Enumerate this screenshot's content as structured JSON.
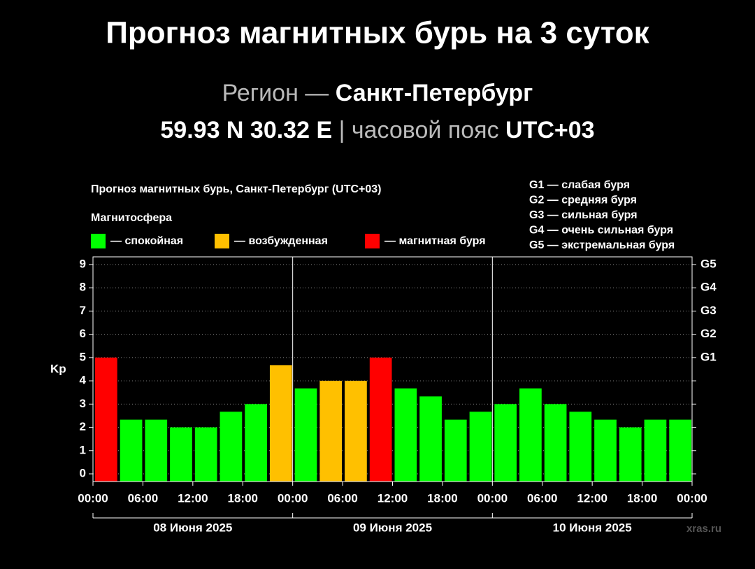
{
  "header": {
    "title": "Прогноз магнитных бурь на 3 суток",
    "region_label": "Регион —",
    "region": "Санкт-Петербург",
    "coords": "59.93 N 30.32 E",
    "separator": "|",
    "tz_label": "часовой пояс",
    "tz": "UTC+03"
  },
  "chart_data": {
    "type": "bar",
    "title": "Прогноз магнитных бурь, Санкт-Петербург (UTC+03)",
    "legend_title": "Магнитосфера",
    "legend": [
      {
        "label": "— спокойная",
        "color": "#00ff00"
      },
      {
        "label": "— возбужденная",
        "color": "#ffc000"
      },
      {
        "label": "— магнитная буря",
        "color": "#ff0000"
      }
    ],
    "g_legend": [
      "G1 — слабая буря",
      "G2 — средняя буря",
      "G3 — сильная буря",
      "G4 — очень сильная буря",
      "G5 — экстремальная буря"
    ],
    "ylabel": "Kp",
    "categories": [
      null,
      null,
      null,
      null,
      null,
      null,
      null,
      null,
      null,
      null,
      null,
      null,
      null,
      null,
      null,
      null,
      null,
      null,
      null,
      null,
      null,
      null,
      null,
      null
    ],
    "values": [
      5,
      2.33,
      2.33,
      2,
      2,
      2.67,
      3,
      4.67,
      3.67,
      4,
      4,
      5,
      3.67,
      3.33,
      2.33,
      2.67,
      3,
      3.67,
      3,
      2.67,
      2.33,
      2,
      2.33,
      2.33
    ],
    "colors": [
      "#ff0000",
      "#00ff00",
      "#00ff00",
      "#00ff00",
      "#00ff00",
      "#00ff00",
      "#00ff00",
      "#ffc000",
      "#00ff00",
      "#ffc000",
      "#ffc000",
      "#ff0000",
      "#00ff00",
      "#00ff00",
      "#00ff00",
      "#00ff00",
      "#00ff00",
      "#00ff00",
      "#00ff00",
      "#00ff00",
      "#00ff00",
      "#00ff00",
      "#00ff00",
      "#00ff00"
    ],
    "ylim": [
      -0.33,
      9.33
    ],
    "yticks": [
      0,
      1,
      2,
      3,
      4,
      5,
      6,
      7,
      8,
      9
    ],
    "y2lim": [
      -0.33,
      9.33
    ],
    "y2ticks": [
      {
        "value": 5,
        "label": "G1"
      },
      {
        "value": 6,
        "label": "G2"
      },
      {
        "value": 7,
        "label": "G3"
      },
      {
        "value": 8,
        "label": "G4"
      },
      {
        "value": 9,
        "label": "G5"
      }
    ],
    "xlim": [
      0,
      72
    ],
    "xticks": [
      {
        "value": 0,
        "label": "00:00"
      },
      {
        "value": 6,
        "label": "06:00"
      },
      {
        "value": 12,
        "label": "12:00"
      },
      {
        "value": 18,
        "label": "18:00"
      },
      {
        "value": 24,
        "label": "00:00"
      },
      {
        "value": 30,
        "label": "06:00"
      },
      {
        "value": 36,
        "label": "12:00"
      },
      {
        "value": 42,
        "label": "18:00"
      },
      {
        "value": 48,
        "label": "00:00"
      },
      {
        "value": 54,
        "label": "06:00"
      },
      {
        "value": 60,
        "label": "12:00"
      },
      {
        "value": 66,
        "label": "18:00"
      },
      {
        "value": 72,
        "label": "00:00"
      }
    ],
    "days": [
      "08 Июня 2025",
      "09 Июня 2025",
      "10 Июня 2025"
    ],
    "grid": true,
    "watermark": "xras.ru"
  }
}
